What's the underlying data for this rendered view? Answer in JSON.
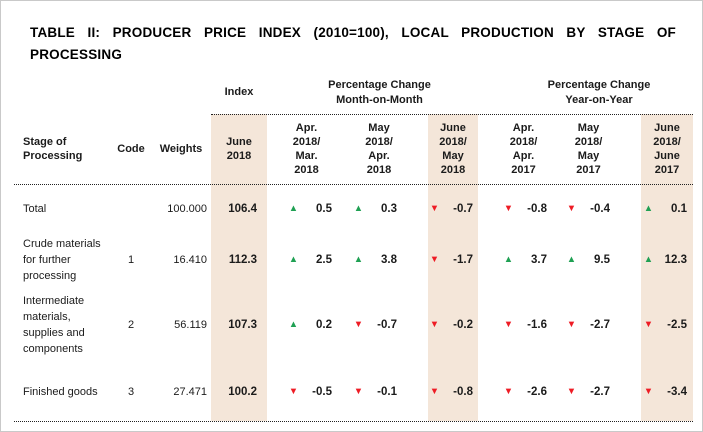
{
  "title": "TABLE II: PRODUCER PRICE INDEX (2010=100), LOCAL PRODUCTION BY STAGE OF PROCESSING",
  "colors": {
    "accent_beige": "#F4E6D9",
    "up_green": "#1FA053",
    "down_red": "#EE1C25",
    "text": "#1B1B1B",
    "line": "#222222"
  },
  "table": {
    "group_headers": {
      "index": "Index",
      "mom": "Percentage Change\nMonth-on-Month",
      "yoy": "Percentage Change\nYear-on-Year"
    },
    "column_headers": {
      "stage": "Stage of\nProcessing",
      "code": "Code",
      "weights": "Weights",
      "index_period": "June\n2018",
      "mom": [
        "Apr.\n2018/\nMar.\n2018",
        "May\n2018/\nApr.\n2018",
        "June\n2018/\nMay\n2018"
      ],
      "yoy": [
        "Apr.\n2018/\nApr.\n2017",
        "May\n2018/\nMay\n2017",
        "June\n2018/\nJune\n2017"
      ]
    },
    "rows": [
      {
        "stage": "Total",
        "code": "",
        "weights": "100.000",
        "index": "106.4",
        "mom": [
          {
            "dir": "up",
            "value": "0.5"
          },
          {
            "dir": "up",
            "value": "0.3"
          },
          {
            "dir": "down",
            "value": "-0.7"
          }
        ],
        "yoy": [
          {
            "dir": "down",
            "value": "-0.8"
          },
          {
            "dir": "down",
            "value": "-0.4"
          },
          {
            "dir": "up",
            "value": "0.1"
          }
        ]
      },
      {
        "stage": "Crude materials for further processing",
        "code": "1",
        "weights": "16.410",
        "index": "112.3",
        "mom": [
          {
            "dir": "up",
            "value": "2.5"
          },
          {
            "dir": "up",
            "value": "3.8"
          },
          {
            "dir": "down",
            "value": "-1.7"
          }
        ],
        "yoy": [
          {
            "dir": "up",
            "value": "3.7"
          },
          {
            "dir": "up",
            "value": "9.5"
          },
          {
            "dir": "up",
            "value": "12.3"
          }
        ]
      },
      {
        "stage": "Intermediate materials, supplies and components",
        "code": "2",
        "weights": "56.119",
        "index": "107.3",
        "mom": [
          {
            "dir": "up",
            "value": "0.2"
          },
          {
            "dir": "down",
            "value": "-0.7"
          },
          {
            "dir": "down",
            "value": "-0.2"
          }
        ],
        "yoy": [
          {
            "dir": "down",
            "value": "-1.6"
          },
          {
            "dir": "down",
            "value": "-2.7"
          },
          {
            "dir": "down",
            "value": "-2.5"
          }
        ]
      },
      {
        "stage": "Finished goods",
        "code": "3",
        "weights": "27.471",
        "index": "100.2",
        "mom": [
          {
            "dir": "down",
            "value": "-0.5"
          },
          {
            "dir": "down",
            "value": "-0.1"
          },
          {
            "dir": "down",
            "value": "-0.8"
          }
        ],
        "yoy": [
          {
            "dir": "down",
            "value": "-2.6"
          },
          {
            "dir": "down",
            "value": "-2.7"
          },
          {
            "dir": "down",
            "value": "-3.4"
          }
        ]
      }
    ]
  }
}
